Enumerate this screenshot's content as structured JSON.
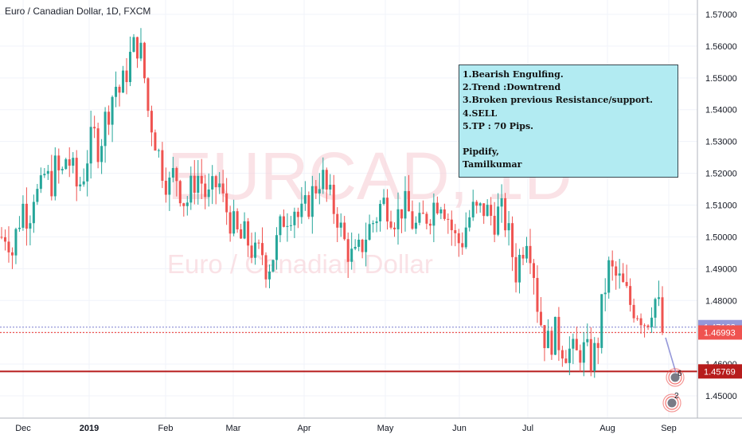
{
  "header": {
    "title": "Euro / Canadian Dollar, 1D, FXCM"
  },
  "watermark": {
    "symbol": "EURCAD, 1D",
    "name": "Euro / Canadian Dollar"
  },
  "note": {
    "lines": [
      "1.Bearish Engulfing.",
      "2.Trend :Downtrend",
      "3.Broken previous Resistance/support.",
      "4.SELL",
      "5.TP : 70 Pips.",
      "",
      "Pipdify,",
      "Tamilkumar"
    ]
  },
  "markers": {
    "entry": "6",
    "target": "2"
  },
  "colors": {
    "up": "#26a69a",
    "down": "#ef5350",
    "support": "#b71c1c",
    "current": "#9598d9",
    "note_bg": "#b2ebf2"
  },
  "chart_data": {
    "type": "candlestick",
    "title": "Euro / Canadian Dollar, 1D, FXCM",
    "x_tick_labels": [
      "Dec",
      "2019",
      "Feb",
      "Mar",
      "Apr",
      "May",
      "Jun",
      "Jul",
      "Aug",
      "Sep"
    ],
    "y_tick_labels": [
      "1.45000",
      "1.46000",
      "1.47000",
      "1.48000",
      "1.49000",
      "1.50000",
      "1.51000",
      "1.52000",
      "1.53000",
      "1.54000",
      "1.55000",
      "1.56000",
      "1.57000"
    ],
    "ylim": [
      1.443,
      1.5745
    ],
    "price_labels": [
      {
        "value": 1.47162,
        "label": "1.47162",
        "color": "#9598d9"
      },
      {
        "value": 1.46993,
        "label": "1.46993",
        "color": "#ef5350"
      },
      {
        "value": 1.45769,
        "label": "1.45769",
        "color": "#b71c1c"
      }
    ],
    "horizontal_lines": [
      {
        "value": 1.47162,
        "style": "dotted",
        "color": "#9598d9"
      },
      {
        "value": 1.46993,
        "style": "dotted",
        "color": "#ef5350"
      },
      {
        "value": 1.45769,
        "style": "solid",
        "color": "#b71c1c"
      }
    ],
    "trend_points": [
      1.5,
      1.502,
      1.495,
      1.504,
      1.51,
      1.506,
      1.515,
      1.512,
      1.52,
      1.516,
      1.522,
      1.518,
      1.526,
      1.521,
      1.515,
      1.519,
      1.527,
      1.532,
      1.528,
      1.536,
      1.542,
      1.548,
      1.545,
      1.552,
      1.558,
      1.561,
      1.556,
      1.54,
      1.534,
      1.526,
      1.52,
      1.516,
      1.521,
      1.515,
      1.51,
      1.515,
      1.52,
      1.517,
      1.511,
      1.514,
      1.518,
      1.51,
      1.507,
      1.502,
      1.499,
      1.5,
      1.497,
      1.493,
      1.496,
      1.49,
      1.494,
      1.499,
      1.506,
      1.508,
      1.51,
      1.505,
      1.508,
      1.512,
      1.516,
      1.52,
      1.514,
      1.51,
      1.507,
      1.499,
      1.496,
      1.492,
      1.495,
      1.5,
      1.503,
      1.506,
      1.51,
      1.511,
      1.508,
      1.506,
      1.51,
      1.508,
      1.504,
      1.502,
      1.506,
      1.508,
      1.511,
      1.513,
      1.509,
      1.503,
      1.498,
      1.499,
      1.505,
      1.508,
      1.507,
      1.509,
      1.507,
      1.506,
      1.508,
      1.505,
      1.497,
      1.489,
      1.496,
      1.502,
      1.494,
      1.478,
      1.47,
      1.466,
      1.47,
      1.467,
      1.465,
      1.464,
      1.462,
      1.465,
      1.463,
      1.461,
      1.466,
      1.48,
      1.49,
      1.488,
      1.486,
      1.483,
      1.479,
      1.478,
      1.476,
      1.473,
      1.479,
      1.481,
      1.47
    ]
  }
}
